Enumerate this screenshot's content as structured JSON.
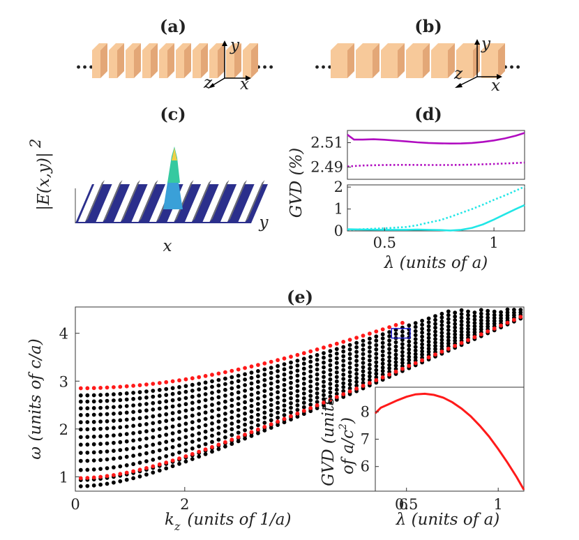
{
  "panels": {
    "a": {
      "label": "(a)",
      "axes": {
        "x": "x",
        "y": "y",
        "z": "z"
      },
      "ellipsis": "..."
    },
    "b": {
      "label": "(b)",
      "axes": {
        "x": "x",
        "y": "y",
        "z": "z"
      },
      "ellipsis": "..."
    },
    "c": {
      "label": "(c)",
      "zlabel": "|E(x,y)|",
      "zlabel_sup": "2",
      "xlabel": "x",
      "ylabel": "y"
    },
    "d": {
      "label": "(d)",
      "ylabel": "GVD (%)",
      "xlabel": "λ (units of a)"
    },
    "e": {
      "label": "(e)",
      "xlabel_main": "k",
      "xlabel_sub": "z",
      "xlabel_rest": "(units of 1/a)",
      "ylabel": "ω (units of c/a)"
    },
    "inset": {
      "ylabel_line1": "GVD (units",
      "ylabel_line2": "of a/c",
      "ylabel_sup": "2",
      "ylabel_end": ")",
      "xlabel": "λ (units of a)"
    }
  },
  "colors": {
    "slab": "#f7c99a",
    "slab_side": "#e3a777",
    "magenta": "#b00cc0",
    "cyan": "#22e6e6",
    "red": "#ff1a1a",
    "black": "#000000",
    "blue_box": "#2020d0",
    "field_base": "#2b2f8c"
  },
  "chart_data": [
    {
      "panel": "d-top",
      "type": "line",
      "x_range": [
        0.33,
        1.14
      ],
      "ylim": [
        2.48,
        2.52
      ],
      "yticks": [
        "2.51",
        "2.49"
      ],
      "ytick_values": [
        2.51,
        2.49
      ],
      "series": [
        {
          "style": "solid",
          "color": "magenta",
          "x": [
            0.33,
            0.36,
            0.4,
            0.45,
            0.5,
            0.55,
            0.6,
            0.65,
            0.7,
            0.75,
            0.8,
            0.85,
            0.9,
            0.95,
            1.0,
            1.05,
            1.1,
            1.14
          ],
          "y": [
            2.5165,
            2.5125,
            2.5125,
            2.5128,
            2.5124,
            2.5117,
            2.511,
            2.5103,
            2.5098,
            2.5095,
            2.5093,
            2.5094,
            2.5098,
            2.5106,
            2.5118,
            2.5135,
            2.5157,
            2.518
          ]
        },
        {
          "style": "dotted",
          "color": "magenta",
          "x": [
            0.33,
            0.4,
            0.5,
            0.6,
            0.7,
            0.8,
            0.9,
            1.0,
            1.1,
            1.14
          ],
          "y": [
            2.4905,
            2.4913,
            2.4917,
            2.4918,
            2.4917,
            2.4917,
            2.492,
            2.4926,
            2.4933,
            2.4937
          ]
        }
      ]
    },
    {
      "panel": "d-bottom",
      "type": "line",
      "x_range": [
        0.33,
        1.14
      ],
      "ylim": [
        0,
        2.1
      ],
      "xticks": [
        "0.5",
        "1"
      ],
      "xtick_values": [
        0.5,
        1.0
      ],
      "yticks": [
        "0",
        "1",
        "2"
      ],
      "ytick_values": [
        0,
        1,
        2
      ],
      "series": [
        {
          "style": "solid",
          "color": "cyan",
          "x": [
            0.33,
            0.4,
            0.5,
            0.6,
            0.65,
            0.7,
            0.75,
            0.8,
            0.85,
            0.9,
            0.95,
            1.0,
            1.05,
            1.1,
            1.14
          ],
          "y": [
            0.08,
            0.06,
            0.05,
            0.05,
            0.06,
            0.05,
            0.04,
            0.02,
            0.05,
            0.14,
            0.3,
            0.52,
            0.76,
            1.0,
            1.18
          ]
        },
        {
          "style": "dotted",
          "color": "cyan",
          "x": [
            0.33,
            0.4,
            0.5,
            0.6,
            0.65,
            0.7,
            0.75,
            0.8,
            0.85,
            0.9,
            0.95,
            1.0,
            1.05,
            1.1,
            1.14
          ],
          "y": [
            0.05,
            0.08,
            0.12,
            0.18,
            0.26,
            0.38,
            0.48,
            0.64,
            0.82,
            1.0,
            1.2,
            1.42,
            1.62,
            1.84,
            2.02
          ]
        }
      ]
    },
    {
      "panel": "e",
      "type": "scatter",
      "xlim": [
        0,
        8.2
      ],
      "ylim": [
        0.7,
        4.55
      ],
      "xticks": [
        "0",
        "2",
        "6"
      ],
      "xtick_values": [
        0,
        2,
        6
      ],
      "yticks": [
        "1",
        "2",
        "3",
        "4"
      ],
      "ytick_values": [
        1,
        2,
        3,
        4
      ],
      "black_band_omega0": [
        0.8,
        0.93,
        1.14,
        1.33,
        1.5,
        1.67,
        1.83,
        1.99,
        2.14,
        2.29,
        2.43,
        2.57,
        2.7
      ],
      "red_band_omega0": [
        0.97,
        2.85
      ],
      "red_band_kmax": 6.1,
      "black_band_kmax": 8.2,
      "highlight_box": {
        "k": [
          5.78,
          6.12
        ],
        "omega": [
          3.9,
          4.1
        ]
      }
    },
    {
      "panel": "inset",
      "type": "line",
      "xlim": [
        0.33,
        1.14
      ],
      "ylim": [
        5.1,
        8.9
      ],
      "xticks": [
        "0.5",
        "1"
      ],
      "xtick_values": [
        0.5,
        1.0
      ],
      "yticks": [
        "8",
        "7",
        "6"
      ],
      "ytick_values": [
        8,
        7,
        6
      ],
      "series": [
        {
          "color": "red",
          "x": [
            0.33,
            0.36,
            0.4,
            0.45,
            0.5,
            0.55,
            0.6,
            0.65,
            0.7,
            0.75,
            0.8,
            0.85,
            0.9,
            0.95,
            1.0,
            1.05,
            1.1,
            1.14
          ],
          "y": [
            7.95,
            8.15,
            8.27,
            8.42,
            8.55,
            8.64,
            8.66,
            8.62,
            8.52,
            8.35,
            8.12,
            7.84,
            7.49,
            7.1,
            6.64,
            6.15,
            5.62,
            5.15
          ]
        }
      ]
    }
  ]
}
